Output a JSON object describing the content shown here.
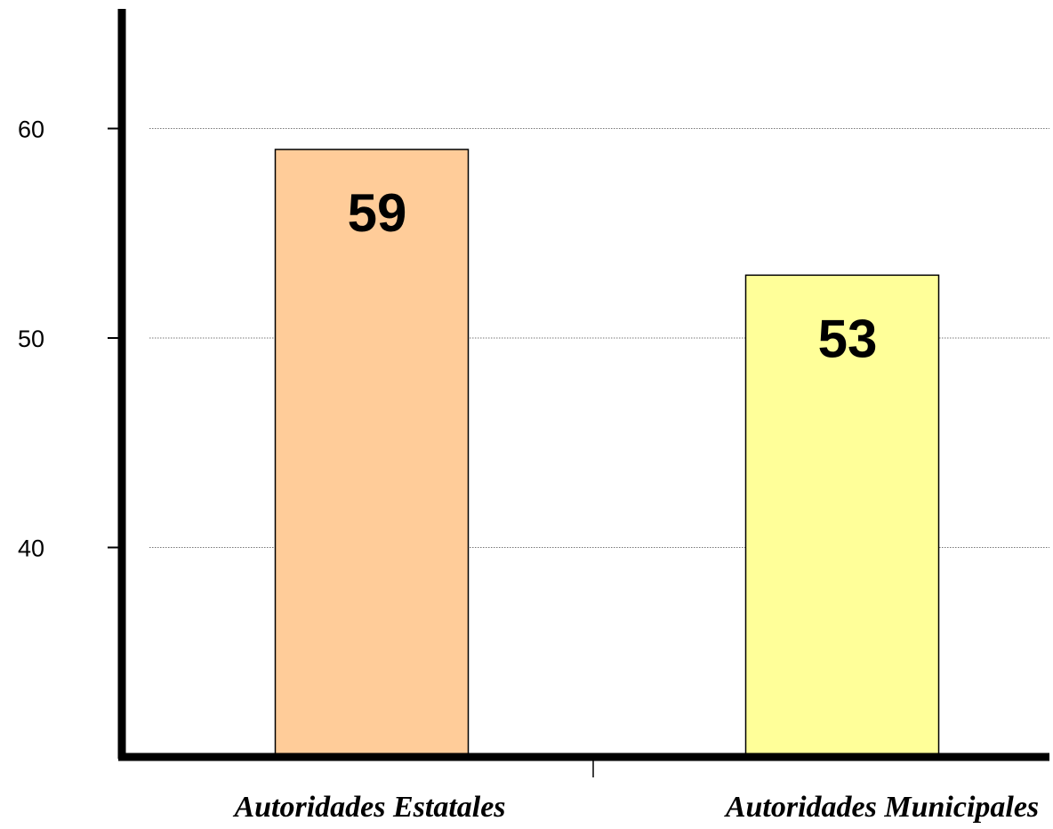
{
  "chart_data": {
    "type": "bar",
    "title": "",
    "xlabel": "",
    "ylabel": "",
    "categories": [
      "Autoridades Estatales",
      "Autoridades Municipales"
    ],
    "values": [
      59,
      53
    ],
    "data_labels": [
      "59",
      "53"
    ],
    "ylim": [
      30,
      60
    ],
    "yticks": [
      40,
      50,
      60
    ],
    "ytick_labels": [
      "40",
      "50",
      "60"
    ],
    "grid": true,
    "grid_style": "dotted",
    "legend": "none",
    "colors": [
      "#FFCC99",
      "#FFFF99"
    ]
  }
}
